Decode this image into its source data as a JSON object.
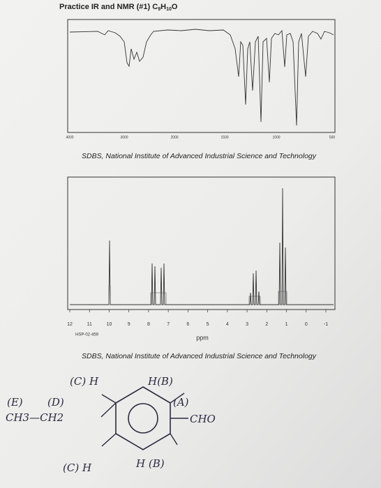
{
  "header": {
    "title": "Practice IR and NMR (#1) C",
    "formula": [
      "9",
      "H",
      "10",
      "O"
    ]
  },
  "ir": {
    "xticks": [
      "4000",
      "3000",
      "2000",
      "1500",
      "1000",
      "500"
    ],
    "credit": "SDBS, National Institute of Advanced Industrial Science and Technology"
  },
  "nmr": {
    "xticks": [
      12,
      11,
      10,
      9,
      8,
      7,
      6,
      5,
      4,
      3,
      2,
      1,
      0,
      -1
    ],
    "code": "HSP-02-459",
    "xlabel": "ppm",
    "credit": "SDBS, National Institute of Advanced Industrial Science and Technology"
  },
  "structure": {
    "labels": [
      "(C) H",
      "(E)",
      "(D)",
      "CH3—CH2",
      "H(B)",
      "(A)",
      "CHO",
      "(C) H",
      "H (B)"
    ]
  }
}
